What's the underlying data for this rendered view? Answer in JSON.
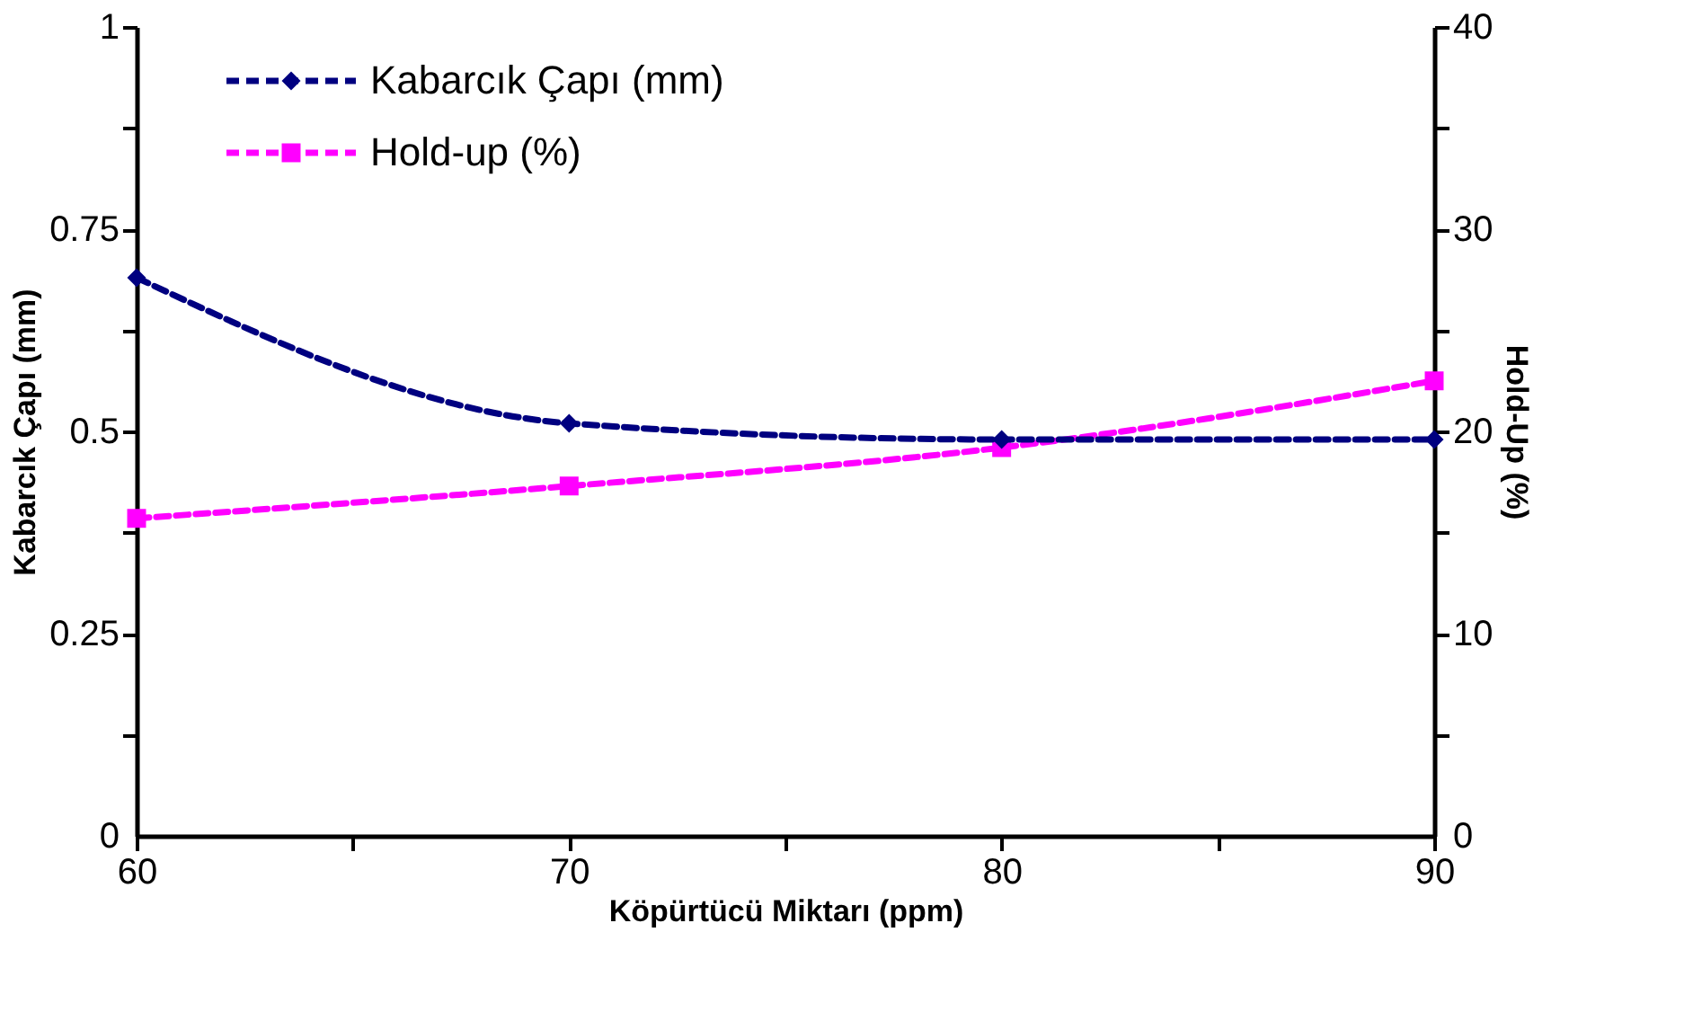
{
  "chart_data": {
    "type": "line",
    "xlabel": "Köpürtücü Miktarı (ppm)",
    "ylabel": "Kabarcık Çapı (mm)",
    "y2label": "Hold-Up (%)",
    "x": [
      60,
      70,
      80,
      90
    ],
    "series": [
      {
        "name": "Kabarcık Çapı (mm)",
        "color": "#000080",
        "marker": "diamond",
        "values": [
          0.69,
          0.51,
          0.49,
          0.49
        ]
      },
      {
        "name": "Hold-up (%)",
        "color": "#ff00ff",
        "marker": "square",
        "axis": "y2",
        "values": [
          15.7,
          17.3,
          19.2,
          22.5
        ]
      }
    ],
    "xlim": [
      60,
      90
    ],
    "xticks": [
      60,
      {
        "value": 65,
        "label": null
      },
      70,
      {
        "value": 75,
        "label": null
      },
      80,
      {
        "value": 85,
        "label": null
      },
      90
    ],
    "ylim": [
      0,
      1
    ],
    "yticks": [
      0,
      {
        "value": 0.125,
        "label": null
      },
      0.25,
      {
        "value": 0.375,
        "label": null
      },
      0.5,
      {
        "value": 0.625,
        "label": null
      },
      0.75,
      {
        "value": 0.875,
        "label": null
      },
      1
    ],
    "y2lim": [
      0,
      40
    ],
    "y2ticks": [
      0,
      {
        "value": 5,
        "label": null
      },
      10,
      {
        "value": 15,
        "label": null
      },
      20,
      {
        "value": 25,
        "label": null
      },
      30,
      {
        "value": 35,
        "label": null
      },
      40
    ],
    "line_style": "dashed",
    "grid": false,
    "legend": "top left"
  }
}
